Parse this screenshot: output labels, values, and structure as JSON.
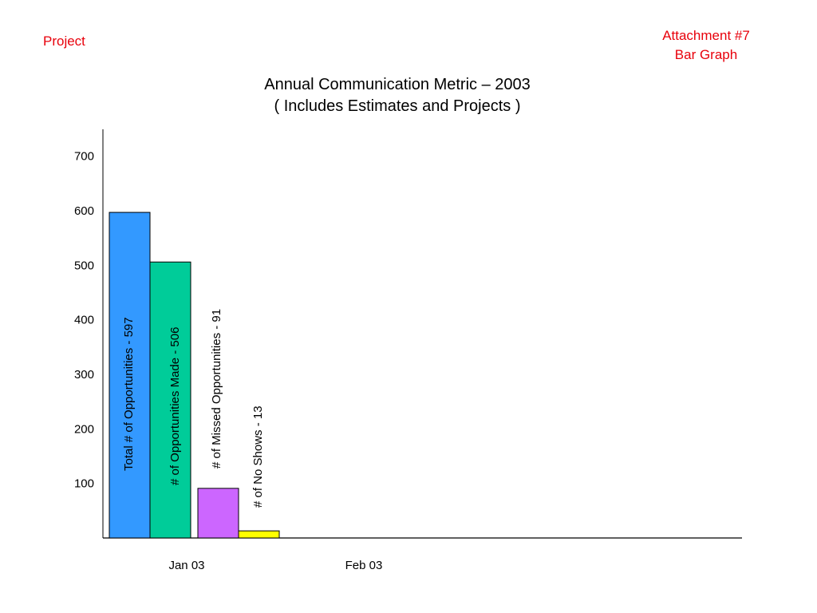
{
  "header": {
    "left_label": "Project",
    "right_line1": "Attachment #7",
    "right_line2": "Bar Graph",
    "accent_color": "#e8000b"
  },
  "chart_data": {
    "type": "bar",
    "title": "Annual Communication Metric – 2003",
    "subtitle": "( Includes Estimates and Projects )",
    "xlabel": "",
    "ylabel": "",
    "ylim": [
      0,
      700
    ],
    "yticks": [
      700,
      600,
      500,
      400,
      300,
      200,
      100
    ],
    "categories": [
      "Jan 03",
      "Feb 03"
    ],
    "grid": false,
    "series": [
      {
        "category": "Jan 03",
        "value": 597,
        "label": "Total # of Opportunities - 597",
        "color": "#3399ff"
      },
      {
        "category": "Jan 03",
        "value": 506,
        "label": "# of Opportunities Made - 506",
        "color": "#00cc99"
      },
      {
        "category": "Jan 03",
        "value": 91,
        "label": "# of Missed Opportunities - 91",
        "color": "#cc66ff"
      },
      {
        "category": "Jan 03",
        "value": 13,
        "label": "# of No Shows - 13",
        "color": "#ffff00"
      }
    ]
  }
}
